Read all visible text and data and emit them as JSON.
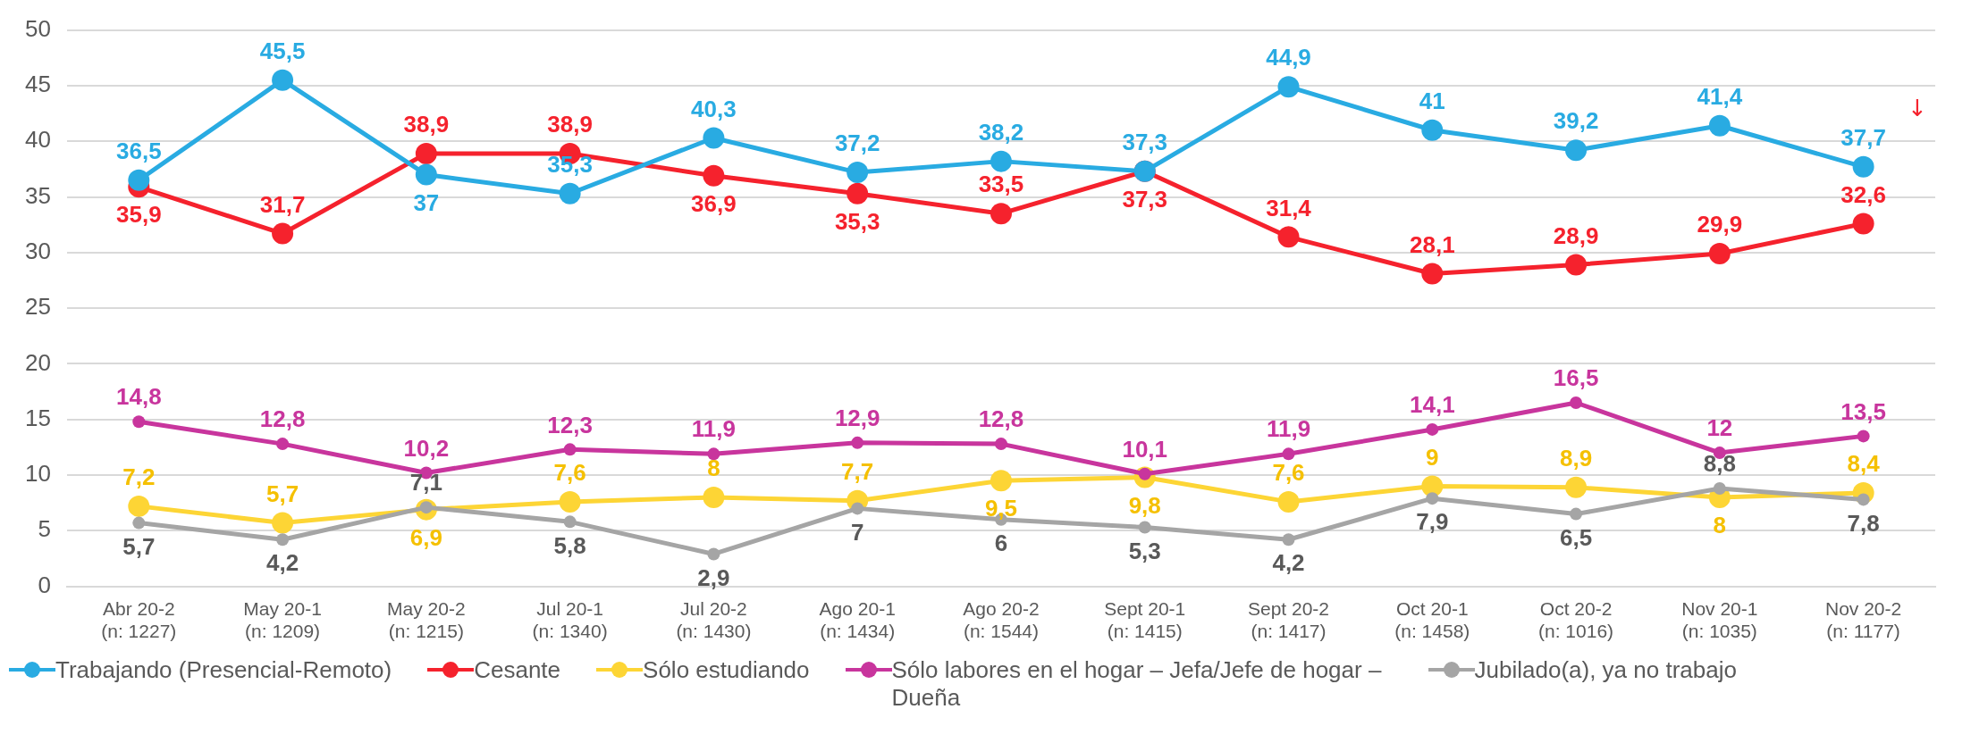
{
  "chart_data": {
    "type": "line",
    "categories": [
      "Abr 20-2\n(n: 1227)",
      "May 20-1\n(n: 1209)",
      "May 20-2\n(n: 1215)",
      "Jul 20-1\n(n: 1340)",
      "Jul 20-2\n(n: 1430)",
      "Ago 20-1\n(n: 1434)",
      "Ago 20-2\n(n: 1544)",
      "Sept 20-1\n(n: 1415)",
      "Sept 20-2\n(n: 1417)",
      "Oct 20-1\n(n: 1458)",
      "Oct 20-2\n(n: 1016)",
      "Nov 20-1\n(n: 1035)",
      "Nov 20-2\n(n: 1177)"
    ],
    "series": [
      {
        "name": "Trabajando (Presencial-Remoto)",
        "color": "#29abe2",
        "values": [
          36.5,
          45.5,
          37,
          35.3,
          40.3,
          37.2,
          38.2,
          37.3,
          44.9,
          41,
          39.2,
          41.4,
          37.7
        ],
        "value_labels": [
          "36,5",
          "45,5",
          "37",
          "35,3",
          "40,3",
          "37,2",
          "38,2",
          "37,3",
          "44,9",
          "41",
          "39,2",
          "41,4",
          "37,7"
        ]
      },
      {
        "name": "Cesante",
        "color": "#f5222d",
        "values": [
          35.9,
          31.7,
          38.9,
          38.9,
          36.9,
          35.3,
          33.5,
          37.3,
          31.4,
          28.1,
          28.9,
          29.9,
          32.6
        ],
        "value_labels": [
          "35,9",
          "31,7",
          "38,9",
          "38,9",
          "36,9",
          "35,3",
          "33,5",
          "37,3",
          "31,4",
          "28,1",
          "28,9",
          "29,9",
          "32,6"
        ]
      },
      {
        "name": "Sólo estudiando",
        "color": "#fdd535",
        "values": [
          7.2,
          5.7,
          6.9,
          7.6,
          8,
          7.7,
          9.5,
          9.8,
          7.6,
          9,
          8.9,
          8,
          8.4
        ],
        "value_labels": [
          "7,2",
          "5,7",
          "6,9",
          "7,6",
          "8",
          "7,7",
          "9,5",
          "9,8",
          "7,6",
          "9",
          "8,9",
          "8",
          "8,4"
        ]
      },
      {
        "name": "Sólo labores en el hogar – Jefa/Jefe de hogar – Dueña",
        "color": "#c8359d",
        "values": [
          14.8,
          12.8,
          10.2,
          12.3,
          11.9,
          12.9,
          12.8,
          10.1,
          11.9,
          14.1,
          16.5,
          12,
          13.5
        ],
        "value_labels": [
          "14,8",
          "12,8",
          "10,2",
          "12,3",
          "11,9",
          "12,9",
          "12,8",
          "10,1",
          "11,9",
          "14,1",
          "16,5",
          "12",
          "13,5"
        ]
      },
      {
        "name": "Jubilado(a), ya no trabajo",
        "color": "#a5a5a5",
        "values": [
          5.7,
          4.2,
          7.1,
          5.8,
          2.9,
          7,
          6,
          5.3,
          4.2,
          7.9,
          6.5,
          8.8,
          7.8
        ],
        "value_labels": [
          "5,7",
          "4,2",
          "7,1",
          "5,8",
          "2,9",
          "7",
          "6",
          "5,3",
          "4,2",
          "7,9",
          "6,5",
          "8,8",
          "7,8"
        ]
      }
    ],
    "annotations": [
      "↓"
    ],
    "data_labels": true,
    "ylim": [
      0,
      50
    ],
    "yticks": [
      0,
      5,
      10,
      15,
      20,
      25,
      30,
      35,
      40,
      45,
      50
    ],
    "grid": "y",
    "legend": "bottom",
    "marker": "circle",
    "line_style": "solid"
  }
}
